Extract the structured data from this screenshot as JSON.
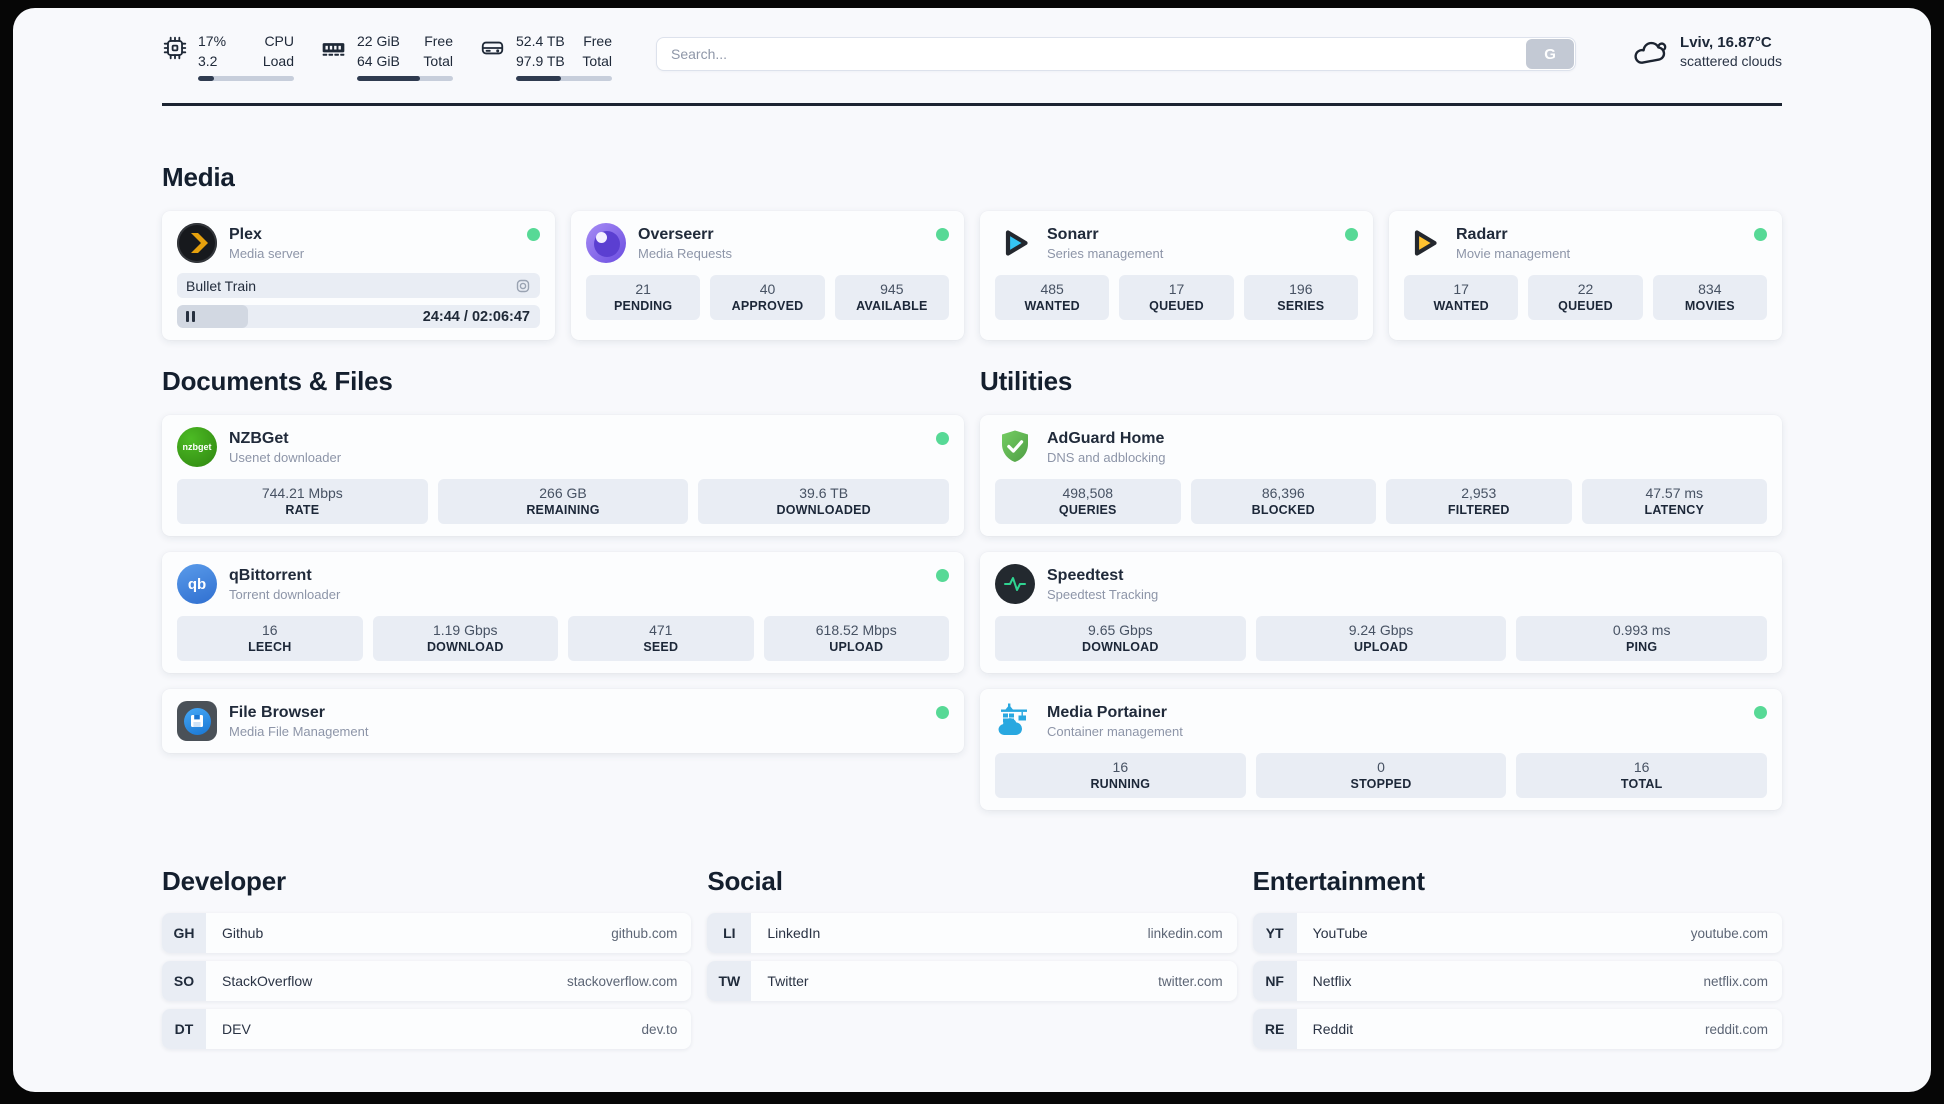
{
  "topbar": {
    "stats": [
      {
        "icon": "cpu-icon",
        "values": [
          "17%",
          "3.2"
        ],
        "labels": [
          "CPU",
          "Load"
        ],
        "progress_pct": 17
      },
      {
        "icon": "ram-icon",
        "values": [
          "22 GiB",
          "64 GiB"
        ],
        "labels": [
          "Free",
          "Total"
        ],
        "progress_pct": 66
      },
      {
        "icon": "disk-icon",
        "values": [
          "52.4 TB",
          "97.9 TB"
        ],
        "labels": [
          "Free",
          "Total"
        ],
        "progress_pct": 47
      }
    ],
    "search": {
      "placeholder": "Search...",
      "button_label": "G"
    },
    "weather": {
      "icon": "cloud-icon",
      "location_temp": "Lviv, 16.87°C",
      "condition": "scattered clouds"
    }
  },
  "media": {
    "title": "Media",
    "plex": {
      "name": "Plex",
      "desc": "Media server",
      "online": true,
      "now_playing": "Bullet Train",
      "time": "24:44 / 02:06:47",
      "progress_pct": 19.5
    },
    "overseerr": {
      "name": "Overseerr",
      "desc": "Media Requests",
      "online": true,
      "stats": [
        {
          "value": "21",
          "label": "PENDING"
        },
        {
          "value": "40",
          "label": "APPROVED"
        },
        {
          "value": "945",
          "label": "AVAILABLE"
        }
      ]
    },
    "sonarr": {
      "name": "Sonarr",
      "desc": "Series management",
      "online": true,
      "stats": [
        {
          "value": "485",
          "label": "WANTED"
        },
        {
          "value": "17",
          "label": "QUEUED"
        },
        {
          "value": "196",
          "label": "SERIES"
        }
      ]
    },
    "radarr": {
      "name": "Radarr",
      "desc": "Movie management",
      "online": true,
      "stats": [
        {
          "value": "17",
          "label": "WANTED"
        },
        {
          "value": "22",
          "label": "QUEUED"
        },
        {
          "value": "834",
          "label": "MOVIES"
        }
      ]
    }
  },
  "documents": {
    "title": "Documents & Files",
    "nzbget": {
      "name": "NZBGet",
      "desc": "Usenet downloader",
      "online": true,
      "stats": [
        {
          "value": "744.21 Mbps",
          "label": "RATE"
        },
        {
          "value": "266 GB",
          "label": "REMAINING"
        },
        {
          "value": "39.6 TB",
          "label": "DOWNLOADED"
        }
      ]
    },
    "qbittorrent": {
      "name": "qBittorrent",
      "desc": "Torrent downloader",
      "online": true,
      "stats": [
        {
          "value": "16",
          "label": "LEECH"
        },
        {
          "value": "1.19 Gbps",
          "label": "DOWNLOAD"
        },
        {
          "value": "471",
          "label": "SEED"
        },
        {
          "value": "618.52 Mbps",
          "label": "UPLOAD"
        }
      ]
    },
    "filebrowser": {
      "name": "File Browser",
      "desc": "Media File Management",
      "online": true
    }
  },
  "utilities": {
    "title": "Utilities",
    "adguard": {
      "name": "AdGuard Home",
      "desc": "DNS and adblocking",
      "online": false,
      "stats": [
        {
          "value": "498,508",
          "label": "QUERIES"
        },
        {
          "value": "86,396",
          "label": "BLOCKED"
        },
        {
          "value": "2,953",
          "label": "FILTERED"
        },
        {
          "value": "47.57 ms",
          "label": "LATENCY"
        }
      ]
    },
    "speedtest": {
      "name": "Speedtest",
      "desc": "Speedtest Tracking",
      "online": false,
      "stats": [
        {
          "value": "9.65 Gbps",
          "label": "DOWNLOAD"
        },
        {
          "value": "9.24 Gbps",
          "label": "UPLOAD"
        },
        {
          "value": "0.993 ms",
          "label": "PING"
        }
      ]
    },
    "portainer": {
      "name": "Media Portainer",
      "desc": "Container management",
      "online": true,
      "stats": [
        {
          "value": "16",
          "label": "RUNNING"
        },
        {
          "value": "0",
          "label": "STOPPED"
        },
        {
          "value": "16",
          "label": "TOTAL"
        }
      ]
    }
  },
  "bookmarks": {
    "developer": {
      "title": "Developer",
      "items": [
        {
          "abbr": "GH",
          "name": "Github",
          "url": "github.com"
        },
        {
          "abbr": "SO",
          "name": "StackOverflow",
          "url": "stackoverflow.com"
        },
        {
          "abbr": "DT",
          "name": "DEV",
          "url": "dev.to"
        }
      ]
    },
    "social": {
      "title": "Social",
      "items": [
        {
          "abbr": "LI",
          "name": "LinkedIn",
          "url": "linkedin.com"
        },
        {
          "abbr": "TW",
          "name": "Twitter",
          "url": "twitter.com"
        }
      ]
    },
    "entertainment": {
      "title": "Entertainment",
      "items": [
        {
          "abbr": "YT",
          "name": "YouTube",
          "url": "youtube.com"
        },
        {
          "abbr": "NF",
          "name": "Netflix",
          "url": "netflix.com"
        },
        {
          "abbr": "RE",
          "name": "Reddit",
          "url": "reddit.com"
        }
      ]
    }
  },
  "colors": {
    "status_online": "#57d996",
    "plex_accent": "#e5a00d",
    "overseerr": "#7c5ce8",
    "sonarr": "#35c5f4",
    "radarr": "#ffc230",
    "nzbget": "#3ba317",
    "qbittorrent": "#3d7fd9",
    "filebrowser": "#2196f3",
    "adguard": "#68bc71",
    "speedtest_pulse": "#2fd491",
    "portainer": "#29a8e0",
    "bar_fill": "#2f3b50"
  }
}
